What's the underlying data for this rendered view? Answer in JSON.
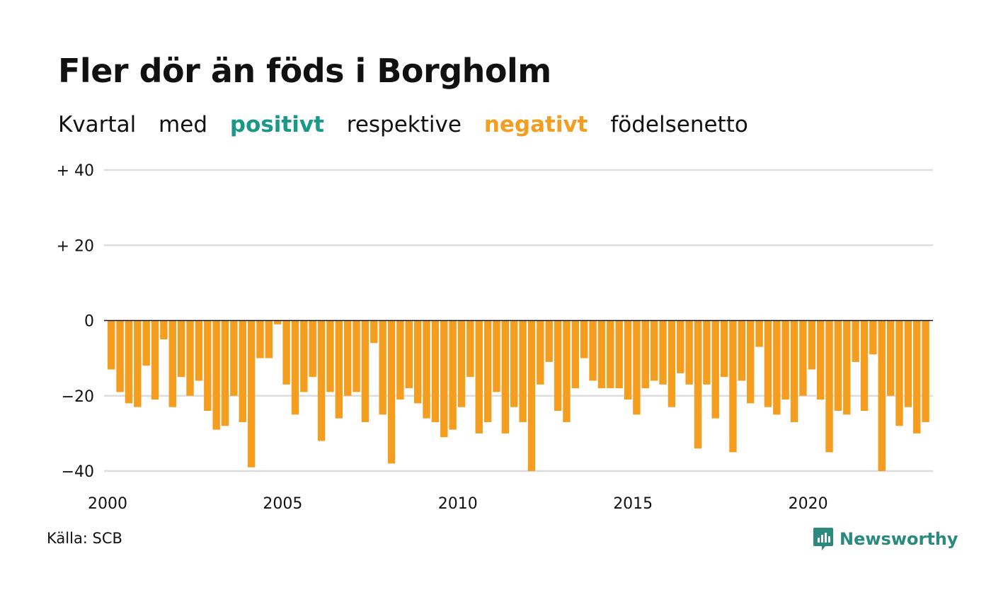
{
  "title": "Fler dör än föds i Borgholm",
  "subtitle": {
    "w1": "Kvartal",
    "w2": "med",
    "positive": "positivt",
    "w3": "respektive",
    "negative": "negativt",
    "w4": "födelsenetto"
  },
  "source": "Källa: SCB",
  "brand": "Newsworthy",
  "colors": {
    "positive": "#1a9988",
    "negative": "#f59d1f",
    "grid": "#dddddd",
    "zero": "#111111"
  },
  "chart_data": {
    "type": "bar",
    "ylim": [
      -40,
      40
    ],
    "yticks": [
      {
        "value": 40,
        "label": "+ 40"
      },
      {
        "value": 20,
        "label": "+ 20"
      },
      {
        "value": 0,
        "label": "0"
      },
      {
        "value": -20,
        "label": "−20"
      },
      {
        "value": -40,
        "label": "−40"
      }
    ],
    "xticks": [
      {
        "index": 0,
        "label": "2000"
      },
      {
        "index": 20,
        "label": "2005"
      },
      {
        "index": 40,
        "label": "2010"
      },
      {
        "index": 60,
        "label": "2015"
      },
      {
        "index": 80,
        "label": "2020"
      }
    ],
    "start": "2000 Q1",
    "grid": true,
    "values": [
      -13,
      -19,
      -22,
      -23,
      -12,
      -21,
      -5,
      -23,
      -15,
      -20,
      -16,
      -24,
      -29,
      -28,
      -20,
      -27,
      -39,
      -10,
      -10,
      -1,
      -17,
      -25,
      -19,
      -15,
      -32,
      -19,
      -26,
      -20,
      -19,
      -27,
      -6,
      -25,
      -38,
      -21,
      -18,
      -22,
      -26,
      -27,
      -31,
      -29,
      -23,
      -15,
      -30,
      -27,
      -19,
      -30,
      -23,
      -27,
      -40,
      -17,
      -11,
      -24,
      -27,
      -18,
      -10,
      -16,
      -18,
      -18,
      -18,
      -21,
      -25,
      -18,
      -16,
      -17,
      -23,
      -14,
      -17,
      -34,
      -17,
      -26,
      -15,
      -35,
      -16,
      -22,
      -7,
      -23,
      -25,
      -21,
      -27,
      -20,
      -13,
      -21,
      -35,
      -24,
      -25,
      -11,
      -24,
      -9,
      -40,
      -20,
      -28,
      -23,
      -30,
      -27
    ]
  }
}
